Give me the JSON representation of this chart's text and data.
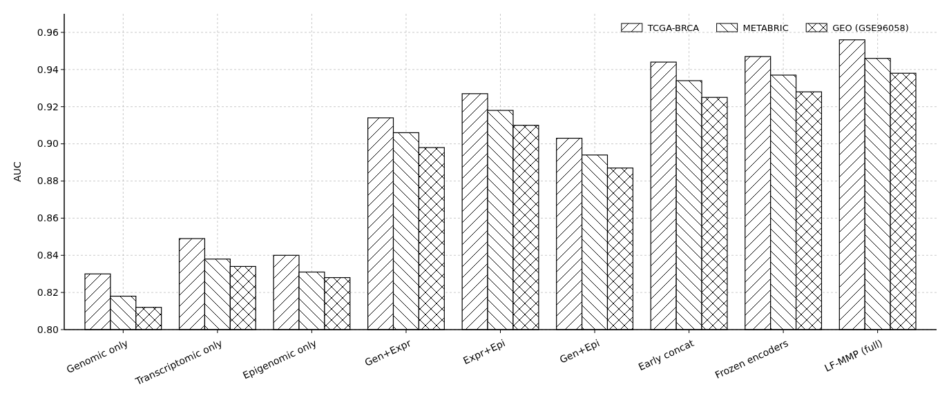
{
  "chart_data": {
    "type": "bar",
    "ylabel": "AUC",
    "categories": [
      "Genomic only",
      "Transcriptomic only",
      "Epigenomic only",
      "Gen+Expr",
      "Expr+Epi",
      "Gen+Epi",
      "Early concat",
      "Frozen encoders",
      "LF-MMP (full)"
    ],
    "series": [
      {
        "name": "TCGA-BRCA",
        "color": "#ffffff",
        "values": [
          0.83,
          0.849,
          0.84,
          0.914,
          0.927,
          0.903,
          0.944,
          0.947,
          0.956
        ]
      },
      {
        "name": "METABRIC",
        "color": "#ffffff",
        "values": [
          0.818,
          0.838,
          0.831,
          0.906,
          0.918,
          0.894,
          0.934,
          0.937,
          0.946
        ]
      },
      {
        "name": "GEO (GSE96058)",
        "color": "#ffffff",
        "values": [
          0.812,
          0.834,
          0.828,
          0.898,
          0.91,
          0.887,
          0.925,
          0.928,
          0.938
        ]
      }
    ],
    "ylim": [
      0.8,
      0.97
    ],
    "yticks": [
      {
        "value": 0.8,
        "label": "0.80"
      },
      {
        "value": 0.82,
        "label": "0.82"
      },
      {
        "value": 0.84,
        "label": "0.84"
      },
      {
        "value": 0.86,
        "label": "0.86"
      },
      {
        "value": 0.88,
        "label": "0.88"
      },
      {
        "value": 0.9,
        "label": "0.90"
      },
      {
        "value": 0.92,
        "label": "0.92"
      },
      {
        "value": 0.94,
        "label": "0.94"
      },
      {
        "value": 0.96,
        "label": "0.96"
      }
    ],
    "grid": true,
    "legend": "top right"
  }
}
